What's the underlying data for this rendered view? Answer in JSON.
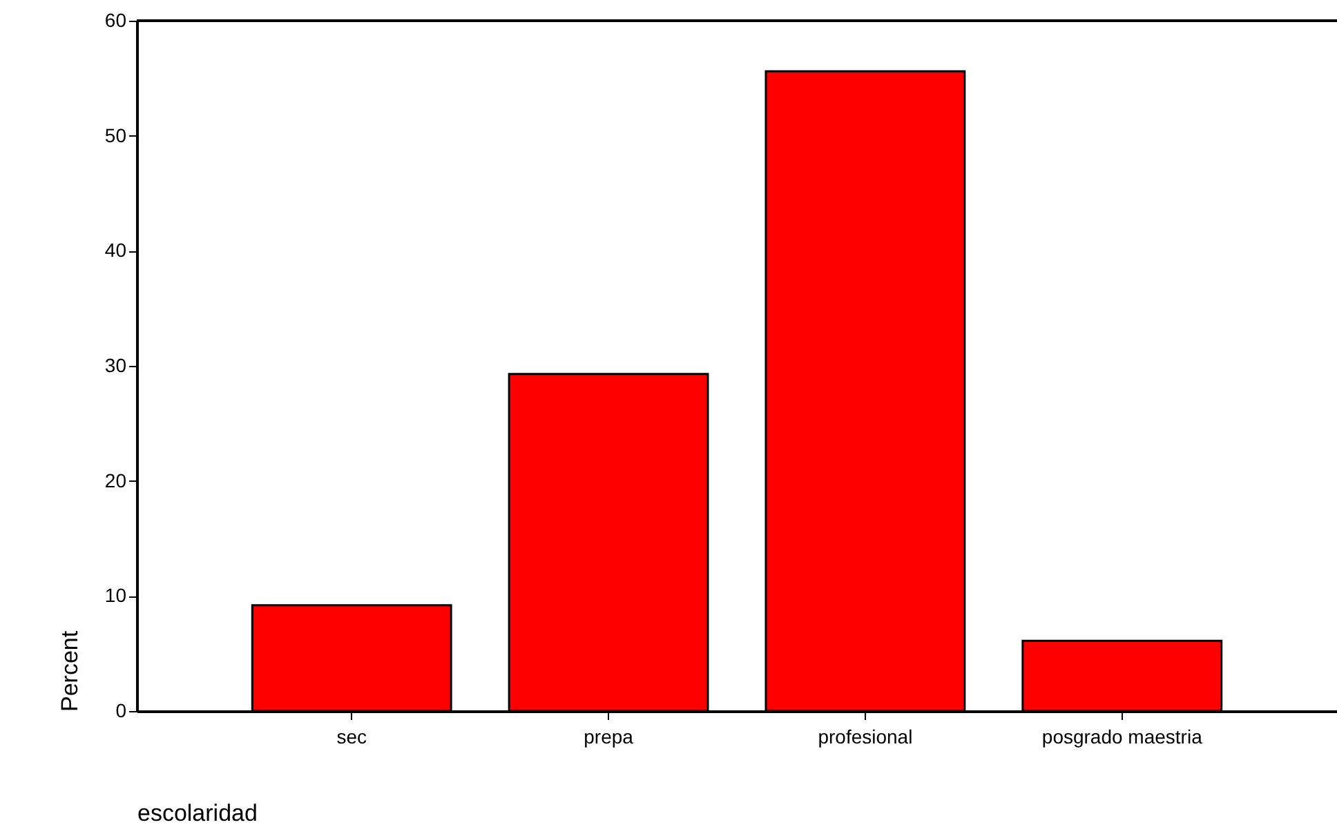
{
  "chart_data": {
    "type": "bar",
    "xlabel": "escolaridad",
    "ylabel": "Percent",
    "categories": [
      "sec",
      "prepa",
      "profesional",
      "posgrado maestria"
    ],
    "values": [
      9.2,
      29.3,
      55.6,
      6.1
    ],
    "color": "#ff0000",
    "ylim": [
      0,
      60
    ],
    "yticks": [
      0,
      10,
      20,
      30,
      40,
      50,
      60
    ],
    "grid": false
  }
}
